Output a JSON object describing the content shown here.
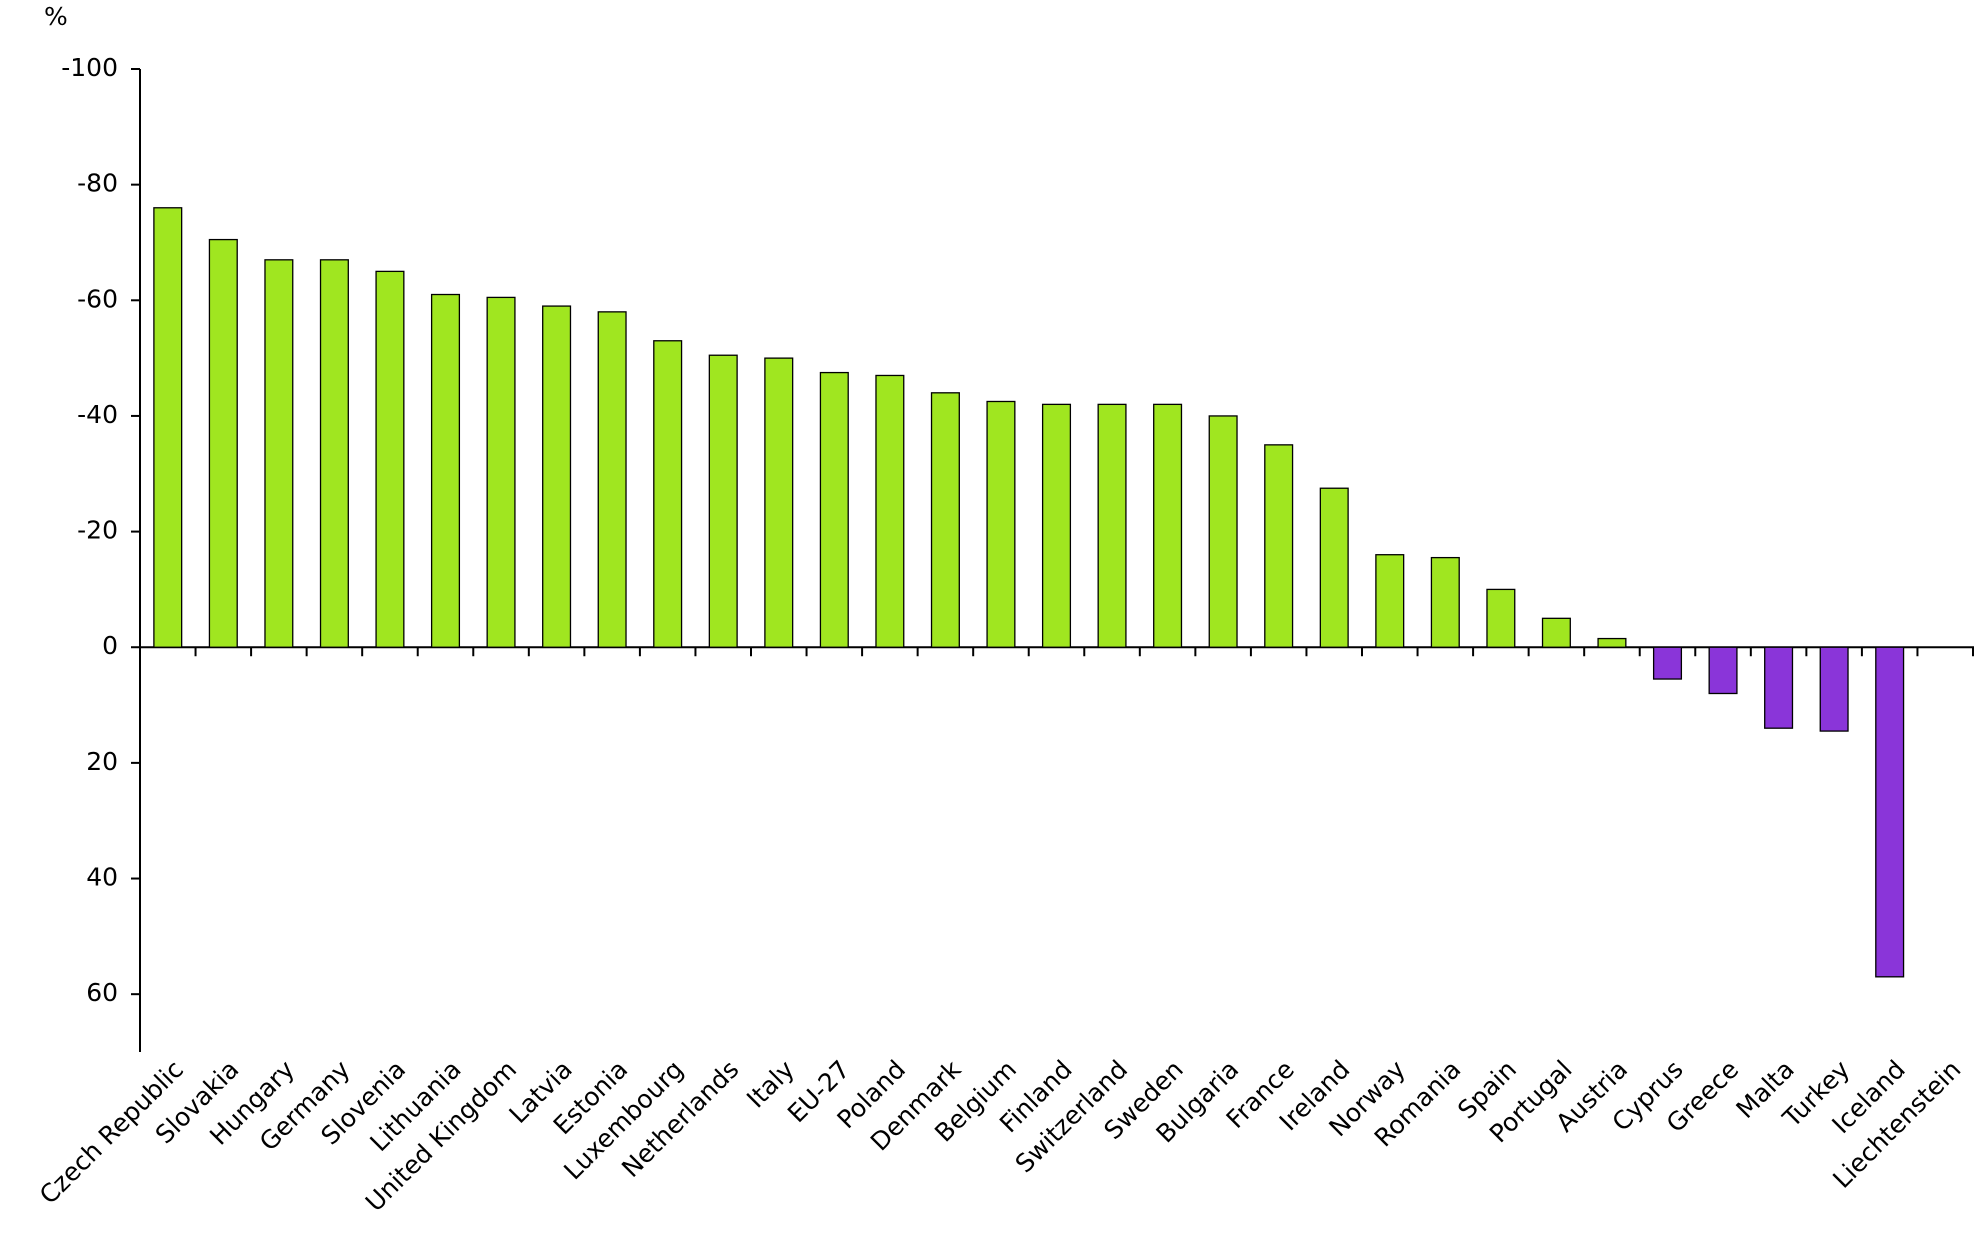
{
  "chart_data": {
    "type": "bar",
    "y_unit": "%",
    "categories": [
      "Czech Republic",
      "Slovakia",
      "Hungary",
      "Germany",
      "Slovenia",
      "Lithuania",
      "United Kingdom",
      "Latvia",
      "Estonia",
      "Luxembourg",
      "Netherlands",
      "Italy",
      "EU-27",
      "Poland",
      "Denmark",
      "Belgium",
      "Finland",
      "Switzerland",
      "Sweden",
      "Bulgaria",
      "France",
      "Ireland",
      "Norway",
      "Romania",
      "Spain",
      "Portugal",
      "Austria",
      "Cyprus",
      "Greece",
      "Malta",
      "Turkey",
      "Iceland",
      "Liechtenstein"
    ],
    "values": [
      -76,
      -70.5,
      -67,
      -67,
      -65,
      -61,
      -60.5,
      -59,
      -58,
      -53,
      -50.5,
      -50,
      -47.5,
      -47,
      -44,
      -42.5,
      -42,
      -42,
      -42,
      -40,
      -35,
      -27.5,
      -16,
      -15.5,
      -10,
      -5,
      -1.5,
      5.5,
      8,
      14,
      14.5,
      57,
      null
    ],
    "color": "#a0e620",
    "increase_color": "#8a35d9",
    "ylim": [
      -100,
      70
    ],
    "y_reversed": true,
    "yticks": [
      -100,
      -80,
      -60,
      -40,
      -20,
      0,
      20,
      40,
      60
    ],
    "grid": false
  }
}
